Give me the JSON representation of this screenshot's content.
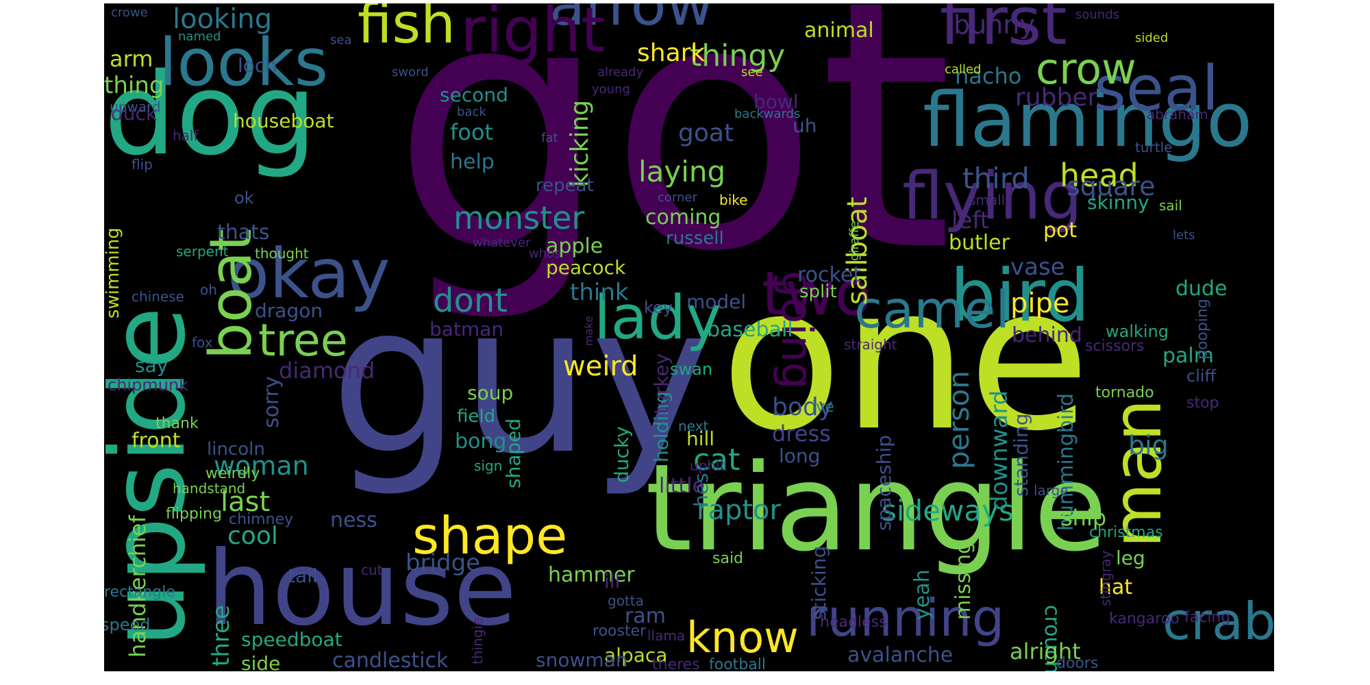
{
  "word_cloud": {
    "palette": {
      "dark_purple": "#440154",
      "indigo": "#3b528b",
      "slate_blue": "#414487",
      "teal": "#21918c",
      "sea_green": "#2a788e",
      "green": "#22a884",
      "light_green": "#7ad151",
      "lime": "#bddf26",
      "yellow": "#fde725",
      "muted_purple": "#482878"
    },
    "words": [
      {
        "text": "got",
        "color": "dark_purple"
      },
      {
        "text": "one",
        "color": "lime"
      },
      {
        "text": "guy",
        "color": "slate_blue"
      },
      {
        "text": "triangle",
        "color": "light_green"
      },
      {
        "text": "dog",
        "color": "green"
      },
      {
        "text": "house",
        "color": "slate_blue"
      },
      {
        "text": "upside",
        "color": "green"
      },
      {
        "text": "flamingo",
        "color": "sea_green"
      },
      {
        "text": "flying",
        "color": "muted_purple"
      },
      {
        "text": "first",
        "color": "muted_purple"
      },
      {
        "text": "looks",
        "color": "sea_green"
      },
      {
        "text": "arrow",
        "color": "indigo"
      },
      {
        "text": "right",
        "color": "dark_purple"
      },
      {
        "text": "fish",
        "color": "lime"
      },
      {
        "text": "seal",
        "color": "indigo"
      },
      {
        "text": "crow",
        "color": "light_green"
      },
      {
        "text": "bird",
        "color": "teal"
      },
      {
        "text": "man",
        "color": "lime"
      },
      {
        "text": "okay",
        "color": "indigo"
      },
      {
        "text": "boat",
        "color": "light_green"
      },
      {
        "text": "two",
        "color": "dark_purple"
      },
      {
        "text": "lady",
        "color": "green"
      },
      {
        "text": "camel",
        "color": "sea_green"
      },
      {
        "text": "running",
        "color": "slate_blue"
      },
      {
        "text": "crab",
        "color": "sea_green"
      },
      {
        "text": "know",
        "color": "yellow"
      },
      {
        "text": "shape",
        "color": "yellow"
      },
      {
        "text": "tree",
        "color": "light_green"
      },
      {
        "text": "going",
        "color": "dark_purple"
      },
      {
        "text": "sailboat",
        "color": "lime"
      },
      {
        "text": "monster",
        "color": "teal"
      },
      {
        "text": "dont",
        "color": "teal"
      },
      {
        "text": "sideways",
        "color": "green"
      },
      {
        "text": "raptor",
        "color": "teal"
      },
      {
        "text": "thingy",
        "color": "light_green"
      },
      {
        "text": "looking",
        "color": "sea_green"
      },
      {
        "text": "bunny",
        "color": "muted_purple"
      },
      {
        "text": "head",
        "color": "lime"
      },
      {
        "text": "third",
        "color": "indigo"
      },
      {
        "text": "laying",
        "color": "light_green"
      },
      {
        "text": "shark",
        "color": "yellow"
      },
      {
        "text": "goat",
        "color": "indigo"
      },
      {
        "text": "foot",
        "color": "teal"
      },
      {
        "text": "help",
        "color": "sea_green"
      },
      {
        "text": "kicking",
        "color": "light_green"
      },
      {
        "text": "person",
        "color": "sea_green"
      },
      {
        "text": "downward",
        "color": "teal"
      },
      {
        "text": "hummingbird",
        "color": "sea_green"
      },
      {
        "text": "crouching",
        "color": "green"
      },
      {
        "text": "square",
        "color": "indigo"
      },
      {
        "text": "rubber",
        "color": "muted_purple"
      },
      {
        "text": "nacho",
        "color": "sea_green"
      },
      {
        "text": "animal",
        "color": "lime"
      },
      {
        "text": "arm",
        "color": "lime"
      },
      {
        "text": "thing",
        "color": "light_green"
      },
      {
        "text": "loch",
        "color": "indigo"
      },
      {
        "text": "second",
        "color": "teal"
      },
      {
        "text": "duck",
        "color": "muted_purple"
      },
      {
        "text": "houseboat",
        "color": "lime"
      },
      {
        "text": "bowl",
        "color": "muted_purple"
      },
      {
        "text": "uh",
        "color": "indigo"
      },
      {
        "text": "left",
        "color": "muted_purple"
      },
      {
        "text": "butler",
        "color": "lime"
      },
      {
        "text": "pot",
        "color": "yellow"
      },
      {
        "text": "vase",
        "color": "indigo"
      },
      {
        "text": "pipe",
        "color": "yellow"
      },
      {
        "text": "behind",
        "color": "muted_purple"
      },
      {
        "text": "palm",
        "color": "green"
      },
      {
        "text": "dude",
        "color": "green"
      },
      {
        "text": "skinny",
        "color": "green"
      },
      {
        "text": "baseball",
        "color": "green"
      },
      {
        "text": "model",
        "color": "indigo"
      },
      {
        "text": "rocket",
        "color": "indigo"
      },
      {
        "text": "think",
        "color": "sea_green"
      },
      {
        "text": "apple",
        "color": "light_green"
      },
      {
        "text": "coming",
        "color": "light_green"
      },
      {
        "text": "repeat",
        "color": "indigo"
      },
      {
        "text": "weird",
        "color": "yellow"
      },
      {
        "text": "cat",
        "color": "green"
      },
      {
        "text": "body",
        "color": "indigo"
      },
      {
        "text": "dress",
        "color": "slate_blue"
      },
      {
        "text": "long",
        "color": "indigo"
      },
      {
        "text": "big",
        "color": "sea_green"
      },
      {
        "text": "standing",
        "color": "indigo"
      },
      {
        "text": "yeah",
        "color": "teal"
      },
      {
        "text": "spaceship",
        "color": "indigo"
      },
      {
        "text": "missing",
        "color": "light_green"
      },
      {
        "text": "ship",
        "color": "light_green"
      },
      {
        "text": "leg",
        "color": "light_green"
      },
      {
        "text": "hat",
        "color": "yellow"
      },
      {
        "text": "alright",
        "color": "light_green"
      },
      {
        "text": "avalanche",
        "color": "indigo"
      },
      {
        "text": "sticking",
        "color": "indigo"
      },
      {
        "text": "hammer",
        "color": "light_green"
      },
      {
        "text": "alpaca",
        "color": "lime"
      },
      {
        "text": "snowman",
        "color": "indigo"
      },
      {
        "text": "candlestick",
        "color": "indigo"
      },
      {
        "text": "speedboat",
        "color": "green"
      },
      {
        "text": "side",
        "color": "light_green"
      },
      {
        "text": "three",
        "color": "green"
      },
      {
        "text": "tail",
        "color": "indigo"
      },
      {
        "text": "bridge",
        "color": "indigo"
      },
      {
        "text": "holding",
        "color": "teal"
      },
      {
        "text": "hes",
        "color": "sea_green"
      },
      {
        "text": "shaped",
        "color": "green"
      },
      {
        "text": "ness",
        "color": "indigo"
      },
      {
        "text": "bong",
        "color": "teal"
      },
      {
        "text": "soup",
        "color": "light_green"
      },
      {
        "text": "field",
        "color": "green"
      },
      {
        "text": "little",
        "color": "muted_purple"
      },
      {
        "text": "hill",
        "color": "lime"
      },
      {
        "text": "ducky",
        "color": "green"
      },
      {
        "text": "turkey",
        "color": "muted_purple"
      },
      {
        "text": "last",
        "color": "light_green"
      },
      {
        "text": "cool",
        "color": "green"
      },
      {
        "text": "woman",
        "color": "teal"
      },
      {
        "text": "handkerchief",
        "color": "light_green"
      },
      {
        "text": "front",
        "color": "lime"
      },
      {
        "text": "sorry",
        "color": "indigo"
      },
      {
        "text": "lincoln",
        "color": "indigo"
      },
      {
        "text": "diamond",
        "color": "muted_purple"
      },
      {
        "text": "say",
        "color": "teal"
      },
      {
        "text": "dragon",
        "color": "indigo"
      },
      {
        "text": "thats",
        "color": "indigo"
      },
      {
        "text": "swimming",
        "color": "lime"
      },
      {
        "text": "batman",
        "color": "muted_purple"
      },
      {
        "text": "russell",
        "color": "sea_green"
      },
      {
        "text": "peacock",
        "color": "lime"
      },
      {
        "text": "ram",
        "color": "indigo"
      },
      {
        "text": "ill",
        "color": "muted_purple"
      },
      {
        "text": "split",
        "color": "light_green"
      },
      {
        "text": "key",
        "color": "indigo"
      },
      {
        "text": "swan",
        "color": "green"
      },
      {
        "text": "walking",
        "color": "green"
      },
      {
        "text": "pooping",
        "color": "indigo"
      },
      {
        "text": "scissors",
        "color": "muted_purple"
      },
      {
        "text": "straight",
        "color": "muted_purple"
      },
      {
        "text": "tornado",
        "color": "light_green"
      },
      {
        "text": "stop",
        "color": "muted_purple"
      },
      {
        "text": "christmas",
        "color": "green"
      },
      {
        "text": "stingray",
        "color": "muted_purple"
      },
      {
        "text": "kangaroo",
        "color": "muted_purple"
      },
      {
        "text": "facing",
        "color": "muted_purple"
      },
      {
        "text": "headless",
        "color": "muted_purple"
      },
      {
        "text": "rooster",
        "color": "indigo"
      },
      {
        "text": "llama",
        "color": "muted_purple"
      },
      {
        "text": "football",
        "color": "sea_green"
      },
      {
        "text": "theres",
        "color": "muted_purple"
      },
      {
        "text": "doors",
        "color": "indigo"
      },
      {
        "text": "speed",
        "color": "sea_green"
      },
      {
        "text": "rectangle",
        "color": "sea_green"
      },
      {
        "text": "flipping",
        "color": "light_green"
      },
      {
        "text": "handstand",
        "color": "light_green"
      },
      {
        "text": "thank",
        "color": "light_green"
      },
      {
        "text": "chipmunk",
        "color": "muted_purple"
      },
      {
        "text": "weirdly",
        "color": "light_green"
      },
      {
        "text": "sign",
        "color": "green"
      },
      {
        "text": "chimney",
        "color": "indigo"
      },
      {
        "text": "thingie",
        "color": "muted_purple"
      },
      {
        "text": "gotta",
        "color": "indigo"
      },
      {
        "text": "cut",
        "color": "muted_purple"
      },
      {
        "text": "said",
        "color": "light_green"
      },
      {
        "text": "uphill",
        "color": "muted_purple"
      },
      {
        "text": "large",
        "color": "indigo"
      },
      {
        "text": "next",
        "color": "sea_green"
      },
      {
        "text": "ive",
        "color": "sea_green"
      },
      {
        "text": "cliff",
        "color": "indigo"
      },
      {
        "text": "chinese",
        "color": "indigo"
      },
      {
        "text": "oh",
        "color": "indigo"
      },
      {
        "text": "fox",
        "color": "indigo"
      },
      {
        "text": "serpent",
        "color": "green"
      },
      {
        "text": "thought",
        "color": "light_green"
      },
      {
        "text": "whatever",
        "color": "muted_purple"
      },
      {
        "text": "whos",
        "color": "muted_purple"
      },
      {
        "text": "make",
        "color": "muted_purple"
      },
      {
        "text": "giraffe",
        "color": "light_green"
      },
      {
        "text": "corner",
        "color": "indigo"
      },
      {
        "text": "bike",
        "color": "yellow"
      },
      {
        "text": "small",
        "color": "muted_purple"
      },
      {
        "text": "sail",
        "color": "light_green"
      },
      {
        "text": "lets",
        "color": "indigo"
      },
      {
        "text": "turtle",
        "color": "indigo"
      },
      {
        "text": "abraham",
        "color": "muted_purple"
      },
      {
        "text": "backwards",
        "color": "sea_green"
      },
      {
        "text": "fat",
        "color": "indigo"
      },
      {
        "text": "back",
        "color": "indigo"
      },
      {
        "text": "flip",
        "color": "indigo"
      },
      {
        "text": "ok",
        "color": "indigo"
      },
      {
        "text": "half",
        "color": "muted_purple"
      },
      {
        "text": "upward",
        "color": "indigo"
      },
      {
        "text": "young",
        "color": "muted_purple"
      },
      {
        "text": "already",
        "color": "muted_purple"
      },
      {
        "text": "sword",
        "color": "indigo"
      },
      {
        "text": "see",
        "color": "lime"
      },
      {
        "text": "called",
        "color": "lime"
      },
      {
        "text": "sided",
        "color": "lime"
      },
      {
        "text": "sounds",
        "color": "muted_purple"
      },
      {
        "text": "named",
        "color": "teal"
      },
      {
        "text": "sea",
        "color": "indigo"
      },
      {
        "text": "crowe",
        "color": "indigo"
      }
    ]
  }
}
